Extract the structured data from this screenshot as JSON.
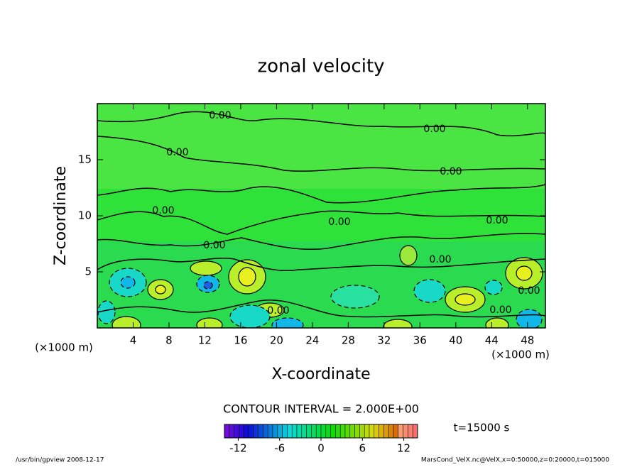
{
  "chart_data": {
    "type": "contour",
    "title": "zonal velocity",
    "xlabel": "X-coordinate",
    "ylabel": "Z-coordinate",
    "x_unit": "(×1000 m)",
    "y_unit": "(×1000 m)",
    "xlim": [
      0,
      50
    ],
    "xticks": [
      4,
      8,
      12,
      16,
      20,
      24,
      28,
      32,
      36,
      40,
      44,
      48
    ],
    "ylim": [
      0,
      20
    ],
    "yticks": [
      5,
      10,
      15
    ],
    "contour_interval": "CONTOUR INTERVAL = 2.000E+00",
    "time_label": "t=15000 s",
    "colorbar": {
      "clim": [
        -14,
        14
      ],
      "ticks": [
        -12,
        -6,
        0,
        6,
        12
      ]
    },
    "contour_labels": [
      "0.00",
      "0.00",
      "0.00",
      "0.00",
      "0.00",
      "0.00",
      "0.00",
      "0.00",
      "0.00",
      "0.00",
      "0.00",
      "0.00"
    ],
    "footer_left": "/usr/bin/gpview  2008-12-17",
    "footer_right": "MarsCond_VelX.nc@VelX,x=0:50000,z=0:20000,t=015000"
  }
}
